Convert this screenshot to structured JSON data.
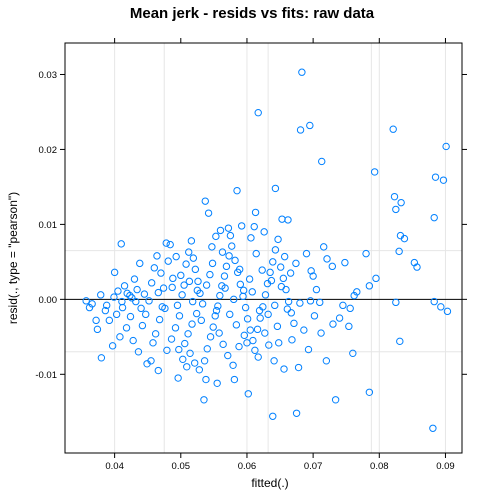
{
  "chart_data": {
    "type": "scatter",
    "title": "Mean jerk - resids vs fits: raw data",
    "xlabel": "fitted(.)",
    "ylabel": "resid(., type = \"pearson\")",
    "xlim": [
      0.0325,
      0.0925
    ],
    "ylim": [
      -0.0205,
      0.0342
    ],
    "x_ticks": [
      0.04,
      0.05,
      0.06,
      0.07,
      0.08,
      0.09
    ],
    "x_tick_labels": [
      "0.04",
      "0.05",
      "0.06",
      "0.07",
      "0.08",
      "0.09"
    ],
    "y_ticks": [
      -0.01,
      0.0,
      0.01,
      0.02,
      0.03
    ],
    "y_tick_labels": [
      "-0.01",
      "0.00",
      "0.01",
      "0.02",
      "0.03"
    ],
    "reference_line_y": 0,
    "grid": true,
    "grid_color": "#e6e6e6",
    "horizontal_reference_lines": [
      0.0065,
      -0.007
    ],
    "point_color": "#0080ff",
    "points": [
      [
        0.0683,
        0.0303
      ],
      [
        0.0617,
        0.0249
      ],
      [
        0.0695,
        0.0232
      ],
      [
        0.0681,
        0.0226
      ],
      [
        0.0821,
        0.0227
      ],
      [
        0.0901,
        0.0204
      ],
      [
        0.0713,
        0.0184
      ],
      [
        0.0793,
        0.017
      ],
      [
        0.0885,
        0.0163
      ],
      [
        0.0897,
        0.0159
      ],
      [
        0.0643,
        0.0148
      ],
      [
        0.0585,
        0.0145
      ],
      [
        0.0823,
        0.0137
      ],
      [
        0.0833,
        0.0129
      ],
      [
        0.0537,
        0.0131
      ],
      [
        0.0825,
        0.012
      ],
      [
        0.0613,
        0.0116
      ],
      [
        0.0883,
        0.0109
      ],
      [
        0.0653,
        0.0107
      ],
      [
        0.0662,
        0.0106
      ],
      [
        0.0542,
        0.0115
      ],
      [
        0.0572,
        0.0095
      ],
      [
        0.0611,
        0.0097
      ],
      [
        0.0832,
        0.0085
      ],
      [
        0.0838,
        0.0081
      ],
      [
        0.041,
        0.0074
      ],
      [
        0.0716,
        0.007
      ],
      [
        0.078,
        0.0061
      ],
      [
        0.0721,
        0.0054
      ],
      [
        0.0729,
        0.0044
      ],
      [
        0.0748,
        0.0049
      ],
      [
        0.083,
        0.0064
      ],
      [
        0.0853,
        0.0049
      ],
      [
        0.0857,
        0.0043
      ],
      [
        0.07,
        0.0031
      ],
      [
        0.0795,
        0.0028
      ],
      [
        0.0785,
        0.0018
      ],
      [
        0.0766,
        0.001
      ],
      [
        0.0762,
        0.0005
      ],
      [
        0.0745,
        -0.0008
      ],
      [
        0.0756,
        -0.0012
      ],
      [
        0.074,
        -0.0025
      ],
      [
        0.0754,
        -0.0036
      ],
      [
        0.073,
        -0.0033
      ],
      [
        0.0825,
        -0.0004
      ],
      [
        0.0883,
        -0.0003
      ],
      [
        0.0893,
        -0.001
      ],
      [
        0.0903,
        -0.0016
      ],
      [
        0.0831,
        -0.0056
      ],
      [
        0.076,
        -0.0072
      ],
      [
        0.072,
        -0.0082
      ],
      [
        0.0785,
        -0.0124
      ],
      [
        0.0734,
        -0.0134
      ],
      [
        0.0881,
        -0.0172
      ],
      [
        0.0675,
        -0.0152
      ],
      [
        0.0639,
        -0.0156
      ],
      [
        0.0535,
        -0.0134
      ],
      [
        0.0602,
        -0.0126
      ],
      [
        0.0555,
        -0.0112
      ],
      [
        0.0581,
        -0.0107
      ],
      [
        0.0538,
        -0.0107
      ],
      [
        0.0496,
        -0.0105
      ],
      [
        0.0509,
        -0.009
      ],
      [
        0.0641,
        -0.0082
      ],
      [
        0.0656,
        -0.0093
      ],
      [
        0.0678,
        -0.0091
      ],
      [
        0.0617,
        -0.0077
      ],
      [
        0.0633,
        -0.0061
      ],
      [
        0.0648,
        -0.0058
      ],
      [
        0.0668,
        -0.0054
      ],
      [
        0.0693,
        -0.0067
      ],
      [
        0.0712,
        -0.0045
      ],
      [
        0.0686,
        -0.0041
      ],
      [
        0.0702,
        -0.0022
      ],
      [
        0.071,
        -0.0004
      ],
      [
        0.0696,
        -0.0002
      ],
      [
        0.068,
        -0.0005
      ],
      [
        0.038,
        -0.0078
      ],
      [
        0.0374,
        -0.004
      ],
      [
        0.0372,
        -0.0028
      ],
      [
        0.0362,
        -0.0011
      ],
      [
        0.0357,
        -0.0002
      ],
      [
        0.0366,
        -0.0006
      ],
      [
        0.0386,
        -0.0015
      ],
      [
        0.0399,
        0.0003
      ],
      [
        0.0405,
        0.0011
      ],
      [
        0.04,
        0.0036
      ],
      [
        0.0415,
        0.0018
      ],
      [
        0.0423,
        0.0005
      ],
      [
        0.043,
        0.0027
      ],
      [
        0.0438,
        0.0048
      ],
      [
        0.0434,
        0.0013
      ],
      [
        0.0412,
        -0.0011
      ],
      [
        0.0424,
        -0.0023
      ],
      [
        0.0418,
        -0.0038
      ],
      [
        0.0408,
        -0.005
      ],
      [
        0.0397,
        -0.0062
      ],
      [
        0.0428,
        -0.0055
      ],
      [
        0.0436,
        -0.007
      ],
      [
        0.0442,
        -0.0035
      ],
      [
        0.0447,
        -0.002
      ],
      [
        0.0452,
        -0.0002
      ],
      [
        0.0456,
        0.0022
      ],
      [
        0.046,
        0.0042
      ],
      [
        0.0464,
        0.0058
      ],
      [
        0.047,
        0.0035
      ],
      [
        0.0474,
        0.0015
      ],
      [
        0.0478,
        0.0075
      ],
      [
        0.0484,
        0.0073
      ],
      [
        0.0481,
        0.0051
      ],
      [
        0.0488,
        0.0028
      ],
      [
        0.0476,
        -0.0012
      ],
      [
        0.0468,
        -0.0027
      ],
      [
        0.0462,
        -0.0046
      ],
      [
        0.0458,
        -0.0058
      ],
      [
        0.0455,
        -0.0082
      ],
      [
        0.0449,
        -0.0086
      ],
      [
        0.0466,
        -0.0095
      ],
      [
        0.0479,
        -0.0068
      ],
      [
        0.0486,
        -0.0053
      ],
      [
        0.0492,
        -0.0038
      ],
      [
        0.0498,
        -0.0022
      ],
      [
        0.0495,
        -0.0008
      ],
      [
        0.0502,
        0.0006
      ],
      [
        0.0505,
        0.0019
      ],
      [
        0.05,
        0.0032
      ],
      [
        0.0508,
        0.0047
      ],
      [
        0.0512,
        0.0063
      ],
      [
        0.0516,
        0.0078
      ],
      [
        0.0519,
        0.0055
      ],
      [
        0.0522,
        0.004
      ],
      [
        0.0526,
        0.0024
      ],
      [
        0.0529,
        0.0008
      ],
      [
        0.0533,
        -0.0006
      ],
      [
        0.0524,
        -0.0019
      ],
      [
        0.0517,
        -0.0033
      ],
      [
        0.0511,
        -0.0046
      ],
      [
        0.0506,
        -0.0059
      ],
      [
        0.0514,
        -0.0072
      ],
      [
        0.0521,
        -0.0085
      ],
      [
        0.0528,
        -0.0094
      ],
      [
        0.0536,
        -0.0082
      ],
      [
        0.054,
        -0.0066
      ],
      [
        0.0545,
        -0.005
      ],
      [
        0.0549,
        -0.0037
      ],
      [
        0.0552,
        -0.0022
      ],
      [
        0.0556,
        -0.0009
      ],
      [
        0.0559,
        0.0005
      ],
      [
        0.0562,
        0.0018
      ],
      [
        0.0566,
        0.0031
      ],
      [
        0.0569,
        0.0044
      ],
      [
        0.0573,
        0.0058
      ],
      [
        0.0547,
        0.007
      ],
      [
        0.0553,
        0.0084
      ],
      [
        0.056,
        0.0092
      ],
      [
        0.0577,
        0.0071
      ],
      [
        0.0582,
        0.0052
      ],
      [
        0.0586,
        0.0036
      ],
      [
        0.059,
        0.002
      ],
      [
        0.0594,
        0.0004
      ],
      [
        0.0598,
        -0.0011
      ],
      [
        0.0601,
        -0.0026
      ],
      [
        0.0605,
        -0.0041
      ],
      [
        0.0609,
        -0.0055
      ],
      [
        0.0612,
        -0.0068
      ],
      [
        0.0616,
        -0.004
      ],
      [
        0.062,
        -0.0025
      ],
      [
        0.0624,
        -0.001
      ],
      [
        0.0628,
        0.0006
      ],
      [
        0.0631,
        0.0021
      ],
      [
        0.0635,
        0.0036
      ],
      [
        0.0639,
        0.005
      ],
      [
        0.0643,
        0.0066
      ],
      [
        0.0647,
        0.008
      ],
      [
        0.0626,
        0.009
      ],
      [
        0.0606,
        0.0082
      ],
      [
        0.0592,
        0.0098
      ],
      [
        0.0575,
        0.0085
      ],
      [
        0.0564,
        -0.006
      ],
      [
        0.0571,
        -0.0075
      ],
      [
        0.0579,
        -0.0088
      ],
      [
        0.0588,
        -0.0063
      ],
      [
        0.0596,
        -0.0048
      ],
      [
        0.0651,
        0.0043
      ],
      [
        0.0655,
        0.0028
      ],
      [
        0.0659,
        0.0013
      ],
      [
        0.0663,
        -0.0003
      ],
      [
        0.0667,
        -0.0018
      ],
      [
        0.0671,
        -0.0032
      ],
      [
        0.0674,
        0.0048
      ],
      [
        0.069,
        0.0061
      ],
      [
        0.0697,
        0.0038
      ],
      [
        0.0705,
        0.0013
      ],
      [
        0.0487,
        0.0016
      ],
      [
        0.0493,
        0.0057
      ],
      [
        0.0497,
        -0.0067
      ],
      [
        0.0503,
        -0.008
      ],
      [
        0.0466,
        0.0009
      ],
      [
        0.0472,
        -0.001
      ],
      [
        0.0445,
        0.0007
      ],
      [
        0.044,
        -0.0012
      ],
      [
        0.0432,
        -0.0003
      ],
      [
        0.0426,
        0.0002
      ],
      [
        0.0419,
        0.0008
      ],
      [
        0.0411,
        -0.0003
      ],
      [
        0.0403,
        -0.002
      ],
      [
        0.0392,
        -0.0028
      ],
      [
        0.0388,
        -0.0008
      ],
      [
        0.0379,
        0.0006
      ],
      [
        0.0513,
        0.0024
      ],
      [
        0.0518,
        -0.0003
      ],
      [
        0.0525,
        0.0012
      ],
      [
        0.0531,
        -0.0028
      ],
      [
        0.0539,
        0.0019
      ],
      [
        0.0544,
        0.0033
      ],
      [
        0.0548,
        0.0048
      ],
      [
        0.0554,
        -0.0015
      ],
      [
        0.0558,
        -0.0045
      ],
      [
        0.0563,
        0.0063
      ],
      [
        0.0567,
        0.0015
      ],
      [
        0.0574,
        -0.002
      ],
      [
        0.058,
        0.0
      ],
      [
        0.0584,
        -0.0034
      ],
      [
        0.0589,
        0.004
      ],
      [
        0.0595,
        0.0012
      ],
      [
        0.06,
        -0.0058
      ],
      [
        0.0604,
        0.0027
      ],
      [
        0.0608,
        0.001
      ],
      [
        0.0614,
        0.0061
      ],
      [
        0.0619,
        -0.0015
      ],
      [
        0.0623,
        0.0039
      ],
      [
        0.0627,
        -0.0045
      ],
      [
        0.0632,
        -0.002
      ],
      [
        0.0637,
        0.0025
      ],
      [
        0.0642,
        -0.0008
      ],
      [
        0.0646,
        -0.0036
      ],
      [
        0.0652,
        0.0017
      ],
      [
        0.0657,
        0.0057
      ],
      [
        0.0661,
        -0.0013
      ],
      [
        0.0666,
        0.0035
      ]
    ]
  }
}
